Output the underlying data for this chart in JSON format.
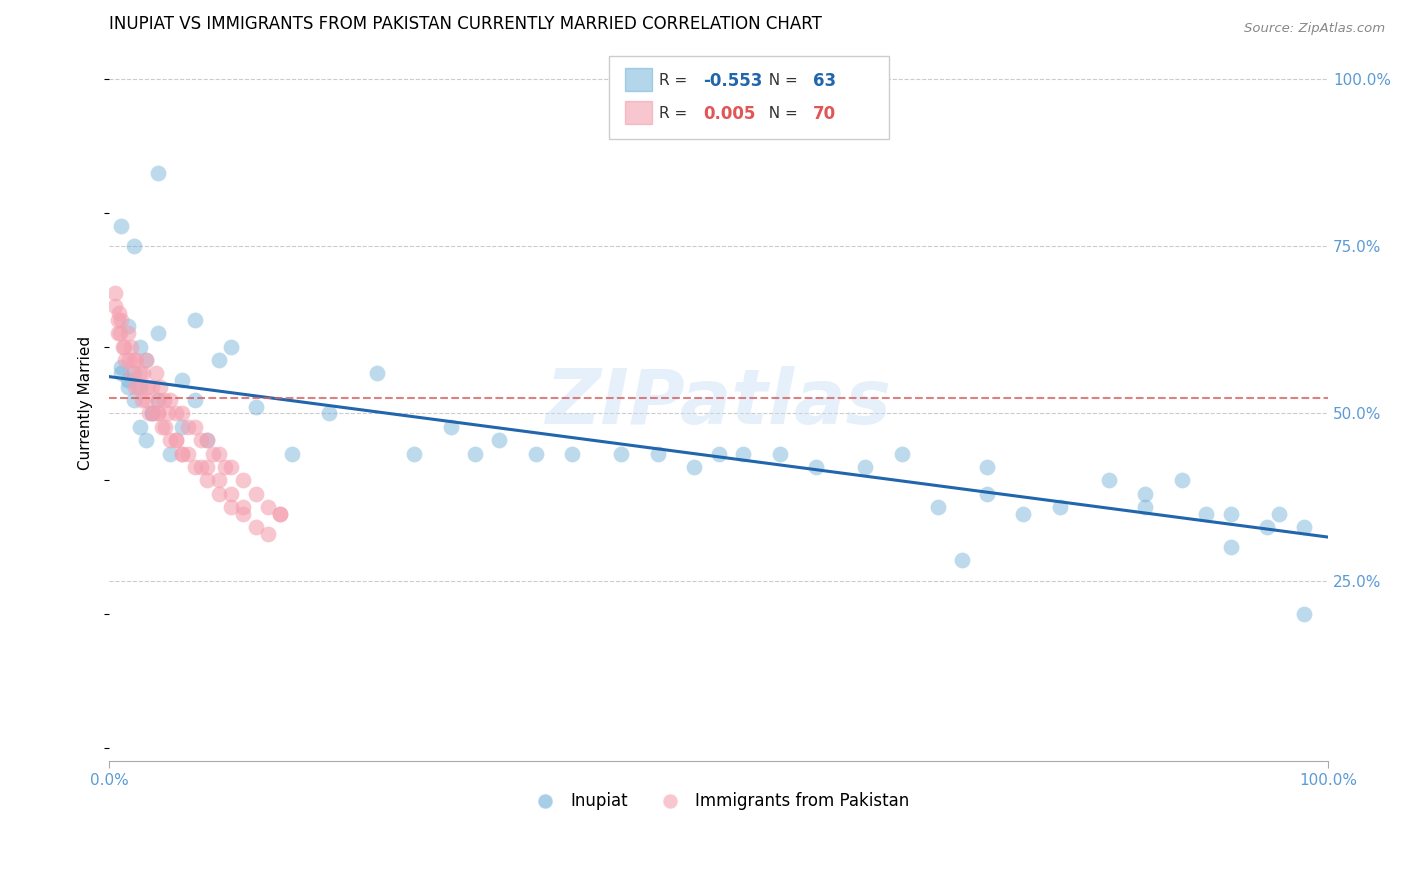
{
  "title": "INUPIAT VS IMMIGRANTS FROM PAKISTAN CURRENTLY MARRIED CORRELATION CHART",
  "source": "Source: ZipAtlas.com",
  "ylabel": "Currently Married",
  "xlim": [
    0,
    1
  ],
  "ylim": [
    0,
    1
  ],
  "inupiat_R": -0.553,
  "inupiat_N": 63,
  "pakistan_R": 0.005,
  "pakistan_N": 70,
  "blue_color": "#6baed6",
  "pink_color": "#f4a0b0",
  "trend_blue": "#2166ac",
  "trend_pink": "#d46060",
  "blue_trend_x": [
    0.0,
    1.0
  ],
  "blue_trend_y": [
    0.555,
    0.315
  ],
  "pink_trend_y": [
    0.523,
    0.523
  ],
  "inupiat_x": [
    0.04,
    0.01,
    0.02,
    0.015,
    0.025,
    0.03,
    0.01,
    0.02,
    0.015,
    0.025,
    0.04,
    0.035,
    0.06,
    0.07,
    0.09,
    0.12,
    0.18,
    0.22,
    0.28,
    0.32,
    0.38,
    0.42,
    0.48,
    0.52,
    0.58,
    0.62,
    0.68,
    0.72,
    0.78,
    0.82,
    0.88,
    0.92,
    0.96,
    0.98,
    0.75,
    0.85,
    0.9,
    0.95,
    0.72,
    0.65,
    0.55,
    0.45,
    0.35,
    0.25,
    0.15,
    0.08,
    0.06,
    0.035,
    0.02,
    0.015,
    0.01,
    0.025,
    0.03,
    0.04,
    0.05,
    0.07,
    0.1,
    0.3,
    0.5,
    0.7,
    0.85,
    0.92,
    0.98
  ],
  "inupiat_y": [
    0.86,
    0.78,
    0.75,
    0.63,
    0.6,
    0.58,
    0.57,
    0.56,
    0.55,
    0.54,
    0.62,
    0.5,
    0.55,
    0.52,
    0.58,
    0.51,
    0.5,
    0.56,
    0.48,
    0.46,
    0.44,
    0.44,
    0.42,
    0.44,
    0.42,
    0.42,
    0.36,
    0.42,
    0.36,
    0.4,
    0.4,
    0.35,
    0.35,
    0.33,
    0.35,
    0.38,
    0.35,
    0.33,
    0.38,
    0.44,
    0.44,
    0.44,
    0.44,
    0.44,
    0.44,
    0.46,
    0.48,
    0.5,
    0.52,
    0.54,
    0.56,
    0.48,
    0.46,
    0.52,
    0.44,
    0.64,
    0.6,
    0.44,
    0.44,
    0.28,
    0.36,
    0.3,
    0.2
  ],
  "pakistan_x": [
    0.005,
    0.007,
    0.008,
    0.01,
    0.012,
    0.015,
    0.018,
    0.02,
    0.022,
    0.025,
    0.028,
    0.03,
    0.032,
    0.035,
    0.038,
    0.04,
    0.042,
    0.045,
    0.048,
    0.05,
    0.055,
    0.06,
    0.065,
    0.07,
    0.075,
    0.08,
    0.085,
    0.09,
    0.095,
    0.1,
    0.11,
    0.12,
    0.13,
    0.14,
    0.005,
    0.007,
    0.009,
    0.011,
    0.013,
    0.016,
    0.019,
    0.021,
    0.024,
    0.027,
    0.03,
    0.033,
    0.036,
    0.04,
    0.043,
    0.046,
    0.05,
    0.055,
    0.06,
    0.065,
    0.07,
    0.08,
    0.09,
    0.1,
    0.11,
    0.04,
    0.055,
    0.06,
    0.075,
    0.08,
    0.09,
    0.1,
    0.11,
    0.12,
    0.13,
    0.14
  ],
  "pakistan_y": [
    0.68,
    0.62,
    0.65,
    0.64,
    0.6,
    0.62,
    0.6,
    0.58,
    0.58,
    0.56,
    0.56,
    0.58,
    0.54,
    0.54,
    0.56,
    0.52,
    0.54,
    0.52,
    0.5,
    0.52,
    0.5,
    0.5,
    0.48,
    0.48,
    0.46,
    0.46,
    0.44,
    0.44,
    0.42,
    0.42,
    0.4,
    0.38,
    0.36,
    0.35,
    0.66,
    0.64,
    0.62,
    0.6,
    0.58,
    0.58,
    0.56,
    0.54,
    0.54,
    0.52,
    0.52,
    0.5,
    0.5,
    0.5,
    0.48,
    0.48,
    0.46,
    0.46,
    0.44,
    0.44,
    0.42,
    0.42,
    0.4,
    0.38,
    0.36,
    0.5,
    0.46,
    0.44,
    0.42,
    0.4,
    0.38,
    0.36,
    0.35,
    0.33,
    0.32,
    0.35
  ],
  "axis_color": "#5b9bd5",
  "title_fontsize": 12,
  "watermark_text": "ZIPatlas"
}
